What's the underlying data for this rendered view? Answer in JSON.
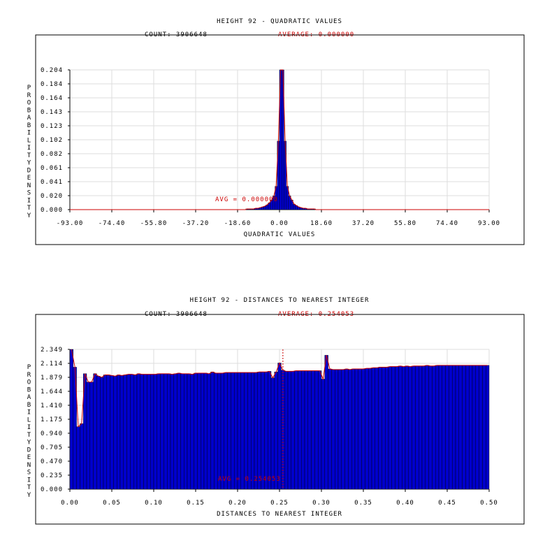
{
  "colors": {
    "bar": "#0000cc",
    "bar_edge": "#000000",
    "curve": "#cc0000",
    "grid": "#dddddd",
    "frame": "#000000",
    "accent": "#cc0000"
  },
  "chart_data": [
    {
      "type": "bar",
      "title": "HEIGHT 92 - QUADRATIC VALUES",
      "count_label": "COUNT: 3906648",
      "average_label": "AVERAGE: 0.000000",
      "avg_marker_label": "AVG = 0.000000",
      "avg_value": 0.0,
      "xlabel": "QUADRATIC VALUES",
      "ylabel": "PROBABILITY DENSITY",
      "xlim": [
        -93.0,
        93.0
      ],
      "ylim": [
        0.0,
        0.204
      ],
      "xticks": [
        "-93.00",
        "-74.40",
        "-55.80",
        "-37.20",
        "-18.60",
        "0.00",
        "18.60",
        "37.20",
        "55.80",
        "74.40",
        "93.00"
      ],
      "yticks": [
        "0.000",
        "0.020",
        "0.041",
        "0.061",
        "0.082",
        "0.102",
        "0.123",
        "0.143",
        "0.164",
        "0.184",
        "0.204"
      ],
      "grid": true,
      "x": [
        -15,
        -14,
        -13,
        -12,
        -11,
        -10,
        -9,
        -8,
        -7,
        -6,
        -5,
        -4,
        -3,
        -2,
        -1,
        0,
        1,
        2,
        3,
        4,
        5,
        6,
        7,
        8,
        9,
        10,
        11,
        12,
        13,
        14,
        15
      ],
      "values": [
        0.001,
        0.001,
        0.001,
        0.001,
        0.002,
        0.002,
        0.003,
        0.004,
        0.005,
        0.007,
        0.01,
        0.014,
        0.02,
        0.034,
        0.1,
        0.204,
        0.204,
        0.1,
        0.034,
        0.02,
        0.014,
        0.008,
        0.006,
        0.004,
        0.003,
        0.002,
        0.002,
        0.001,
        0.001,
        0.001,
        0.001
      ]
    },
    {
      "type": "bar",
      "title": "HEIGHT 92 - DISTANCES TO NEAREST INTEGER",
      "count_label": "COUNT: 3906648",
      "average_label": "AVERAGE: 0.254053",
      "avg_marker_label": "AVG = 0.254053",
      "avg_value": 0.254053,
      "xlabel": "DISTANCES TO NEAREST INTEGER",
      "ylabel": "PROBABILITY DENSITY",
      "xlim": [
        0.0,
        0.5
      ],
      "ylim": [
        0.0,
        2.349
      ],
      "xticks": [
        "0.00",
        "0.05",
        "0.10",
        "0.15",
        "0.20",
        "0.25",
        "0.30",
        "0.35",
        "0.40",
        "0.45",
        "0.50"
      ],
      "yticks": [
        "0.000",
        "0.235",
        "0.470",
        "0.705",
        "0.940",
        "1.175",
        "1.410",
        "1.644",
        "1.879",
        "2.114",
        "2.349"
      ],
      "grid": true,
      "bin_width": 0.004,
      "values": [
        2.349,
        2.05,
        1.05,
        1.1,
        1.94,
        1.8,
        1.8,
        1.94,
        1.9,
        1.88,
        1.92,
        1.92,
        1.91,
        1.9,
        1.92,
        1.91,
        1.92,
        1.93,
        1.93,
        1.92,
        1.94,
        1.93,
        1.93,
        1.93,
        1.93,
        1.93,
        1.94,
        1.94,
        1.94,
        1.94,
        1.93,
        1.94,
        1.95,
        1.94,
        1.94,
        1.94,
        1.93,
        1.95,
        1.95,
        1.95,
        1.95,
        1.94,
        1.97,
        1.95,
        1.95,
        1.95,
        1.96,
        1.96,
        1.96,
        1.96,
        1.96,
        1.96,
        1.96,
        1.96,
        1.96,
        1.96,
        1.97,
        1.97,
        1.97,
        1.98,
        1.87,
        1.97,
        2.12,
        2.0,
        1.98,
        1.98,
        1.98,
        1.99,
        1.99,
        1.99,
        1.99,
        1.99,
        1.99,
        1.99,
        1.99,
        1.85,
        2.25,
        2.02,
        2.01,
        2.01,
        2.01,
        2.01,
        2.02,
        2.01,
        2.02,
        2.02,
        2.02,
        2.02,
        2.03,
        2.03,
        2.04,
        2.04,
        2.05,
        2.05,
        2.05,
        2.06,
        2.06,
        2.06,
        2.07,
        2.06,
        2.07,
        2.06,
        2.07,
        2.07,
        2.07,
        2.07,
        2.08,
        2.07,
        2.07,
        2.08,
        2.08,
        2.08,
        2.08,
        2.08,
        2.08,
        2.08,
        2.08,
        2.08,
        2.08,
        2.08,
        2.08,
        2.08,
        2.08,
        2.08,
        2.08
      ]
    }
  ]
}
